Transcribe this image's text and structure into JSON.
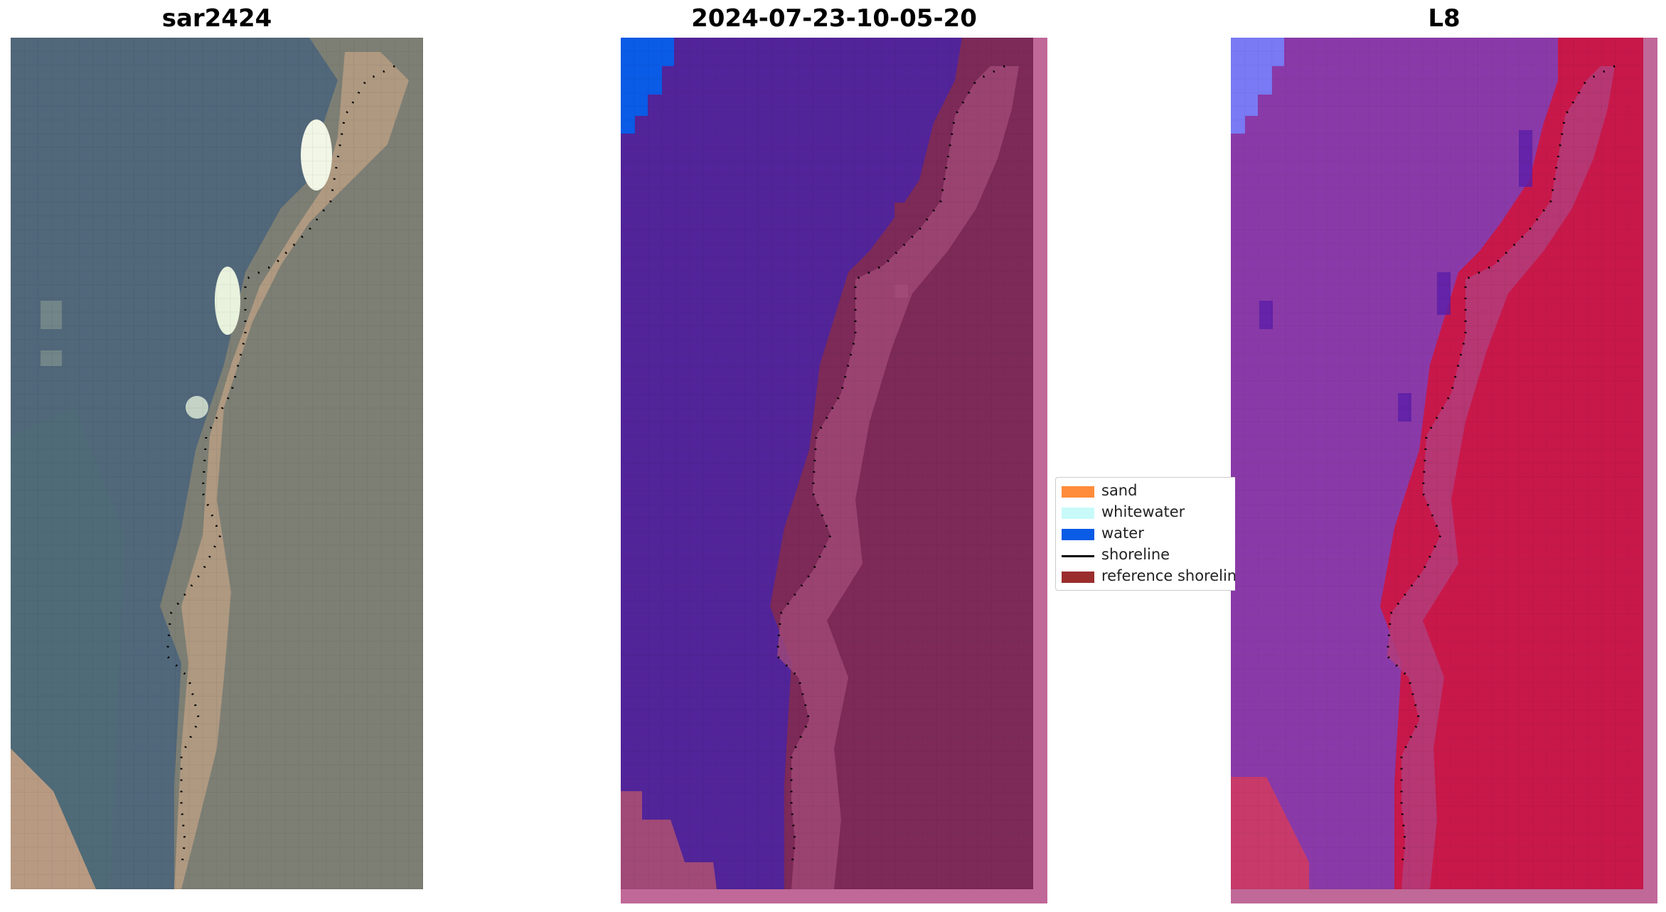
{
  "panels": [
    {
      "title": "sar2424"
    },
    {
      "title": "2024-07-23-10-05-20"
    },
    {
      "title": "L8"
    }
  ],
  "legend": {
    "items": [
      {
        "label": "sand",
        "color": "#ff8c3a",
        "kind": "patch"
      },
      {
        "label": "whitewater",
        "color": "#c8fafa",
        "kind": "patch"
      },
      {
        "label": "water",
        "color": "#0a5be6",
        "kind": "patch"
      },
      {
        "label": "shoreline",
        "color": "#000000",
        "kind": "line"
      },
      {
        "label": "reference shoreline",
        "color": "#9b2d2d",
        "kind": "patch"
      }
    ]
  },
  "colors": {
    "rgb_water": "#4f6478",
    "rgb_land": "#8a8a7e",
    "rgb_sand": "#c8a888",
    "class_water": "#522499",
    "class_land": "#7d2a58",
    "class_land_edge": "#b06090",
    "class_border": "#c06898",
    "water_blue": "#0a5be6",
    "false_water": "#8a3aa8",
    "false_land": "#c8184a",
    "false_blue": "#7a7af5"
  }
}
